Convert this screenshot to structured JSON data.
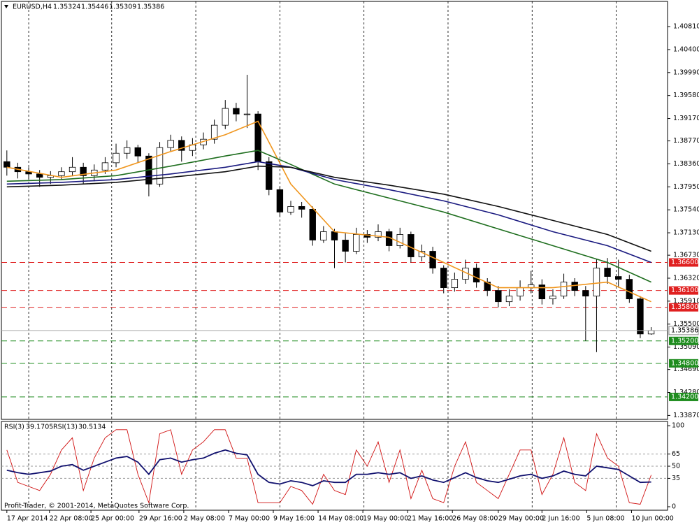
{
  "chart_data": {
    "type": "candlestick",
    "symbol": "EURUSD,H4",
    "header_values": {
      "open": 1.35324,
      "high": 1.35446,
      "low": 1.35309,
      "close": 1.35386
    },
    "ylim": [
      1.338,
      1.4126
    ],
    "yticks": [
      {
        "value": 1.4081,
        "label": "1.40810"
      },
      {
        "value": 1.404,
        "label": "1.40400"
      },
      {
        "value": 1.3999,
        "label": "1.39990"
      },
      {
        "value": 1.3958,
        "label": "1.39580"
      },
      {
        "value": 1.3917,
        "label": "1.39170"
      },
      {
        "value": 1.3877,
        "label": "1.38770"
      },
      {
        "value": 1.3836,
        "label": "1.38360"
      },
      {
        "value": 1.3795,
        "label": "1.37950"
      },
      {
        "value": 1.3754,
        "label": "1.37540"
      },
      {
        "value": 1.3713,
        "label": "1.37130"
      },
      {
        "value": 1.3673,
        "label": "1.36730"
      },
      {
        "value": 1.3632,
        "label": "1.36320"
      },
      {
        "value": 1.3591,
        "label": "1.35910"
      },
      {
        "value": 1.355,
        "label": "1.35500"
      },
      {
        "value": 1.3509,
        "label": "1.35090"
      },
      {
        "value": 1.3469,
        "label": "1.34690"
      },
      {
        "value": 1.3428,
        "label": "1.34280"
      },
      {
        "value": 1.3387,
        "label": "1.33870"
      }
    ],
    "xlim": [
      -0.5,
      60.5
    ],
    "xticks": [
      {
        "value": 0,
        "label": "17 Apr 2014"
      },
      {
        "value": 3.9,
        "label": "22 Apr 08:00"
      },
      {
        "value": 7.7,
        "label": "25 Apr 00:00"
      },
      {
        "value": 12.1,
        "label": "29 Apr 16:00"
      },
      {
        "value": 16.2,
        "label": "2 May 08:00"
      },
      {
        "value": 20.3,
        "label": "7 May 00:00"
      },
      {
        "value": 24.4,
        "label": "9 May 16:00"
      },
      {
        "value": 28.5,
        "label": "14 May 08:00"
      },
      {
        "value": 32.6,
        "label": "19 May 00:00"
      },
      {
        "value": 36.7,
        "label": "21 May 16:00"
      },
      {
        "value": 40.8,
        "label": "26 May 08:00"
      },
      {
        "value": 45.0,
        "label": "29 May 00:00"
      },
      {
        "value": 49.0,
        "label": "2 Jun 16:00"
      },
      {
        "value": 53.1,
        "label": "5 Jun 08:00"
      },
      {
        "value": 57.2,
        "label": "10 Jun 00:00"
      }
    ],
    "xgrid": [
      2.0,
      9.6,
      17.3,
      25.0,
      32.7,
      40.4,
      48.1,
      55.8
    ],
    "open": [
      1.384,
      1.383,
      1.3822,
      1.3818,
      1.3812,
      1.3815,
      1.3822,
      1.383,
      1.3815,
      1.3825,
      1.3838,
      1.3855,
      1.3865,
      1.385,
      1.38,
      1.3865,
      1.3878,
      1.386,
      1.387,
      1.388,
      1.3905,
      1.3935,
      1.3925,
      1.3925,
      1.384,
      1.379,
      1.375,
      1.376,
      1.3755,
      1.37,
      1.3715,
      1.37,
      1.368,
      1.371,
      1.3705,
      1.3715,
      1.369,
      1.371,
      1.367,
      1.368,
      1.365,
      1.3615,
      1.363,
      1.365,
      1.3625,
      1.361,
      1.359,
      1.36,
      1.3615,
      1.362,
      1.3595,
      1.36,
      1.3625,
      1.361,
      1.36,
      1.365,
      1.3635,
      1.363,
      1.3595,
      1.35324
    ],
    "high": [
      1.386,
      1.3838,
      1.383,
      1.3825,
      1.3823,
      1.383,
      1.3848,
      1.3838,
      1.3835,
      1.3848,
      1.3872,
      1.3878,
      1.387,
      1.3855,
      1.3875,
      1.3888,
      1.3885,
      1.3882,
      1.3892,
      1.3915,
      1.395,
      1.3945,
      1.3995,
      1.393,
      1.3848,
      1.3795,
      1.377,
      1.3768,
      1.376,
      1.3725,
      1.372,
      1.3712,
      1.3722,
      1.3718,
      1.3728,
      1.372,
      1.3722,
      1.3715,
      1.3692,
      1.3688,
      1.3655,
      1.3642,
      1.3665,
      1.3658,
      1.3632,
      1.3618,
      1.3612,
      1.3628,
      1.3645,
      1.363,
      1.3612,
      1.364,
      1.3632,
      1.3618,
      1.3665,
      1.3668,
      1.3665,
      1.3638,
      1.36,
      1.35446
    ],
    "low": [
      1.3815,
      1.381,
      1.3808,
      1.3795,
      1.38,
      1.3808,
      1.3815,
      1.38,
      1.3805,
      1.3818,
      1.383,
      1.3845,
      1.3838,
      1.3778,
      1.3795,
      1.3858,
      1.384,
      1.385,
      1.3862,
      1.3872,
      1.3898,
      1.3912,
      1.39,
      1.3825,
      1.378,
      1.3742,
      1.3745,
      1.374,
      1.369,
      1.3695,
      1.365,
      1.366,
      1.3675,
      1.3695,
      1.3698,
      1.368,
      1.3685,
      1.366,
      1.3662,
      1.364,
      1.3605,
      1.3608,
      1.3622,
      1.3615,
      1.36,
      1.358,
      1.3582,
      1.3592,
      1.3605,
      1.3585,
      1.3585,
      1.3595,
      1.36,
      1.352,
      1.35,
      1.3622,
      1.3615,
      1.3588,
      1.3525,
      1.35309
    ],
    "close": [
      1.383,
      1.3822,
      1.3818,
      1.3812,
      1.3815,
      1.3822,
      1.383,
      1.3815,
      1.3825,
      1.3838,
      1.3855,
      1.3865,
      1.385,
      1.38,
      1.3865,
      1.3878,
      1.386,
      1.387,
      1.388,
      1.3905,
      1.3935,
      1.3925,
      1.3925,
      1.384,
      1.379,
      1.375,
      1.376,
      1.3755,
      1.37,
      1.3715,
      1.37,
      1.368,
      1.371,
      1.3705,
      1.3715,
      1.369,
      1.371,
      1.367,
      1.368,
      1.365,
      1.3615,
      1.363,
      1.365,
      1.3625,
      1.361,
      1.359,
      1.36,
      1.3615,
      1.362,
      1.3595,
      1.36,
      1.3625,
      1.361,
      1.36,
      1.365,
      1.3635,
      1.363,
      1.3595,
      1.35324,
      1.35386
    ],
    "ma_x": [
      0,
      5,
      10,
      15,
      20,
      23,
      26,
      30,
      35,
      40,
      45,
      50,
      55,
      59
    ],
    "moving_averages": [
      {
        "color": "#f0961e",
        "values": [
          1.383,
          1.3812,
          1.3825,
          1.3858,
          1.3888,
          1.3912,
          1.38,
          1.3715,
          1.3705,
          1.366,
          1.3615,
          1.3615,
          1.3625,
          1.359
        ]
      },
      {
        "color": "#1e6e1e",
        "values": [
          1.3805,
          1.3808,
          1.3815,
          1.3832,
          1.385,
          1.386,
          1.3835,
          1.38,
          1.3775,
          1.375,
          1.372,
          1.369,
          1.366,
          1.3625
        ]
      },
      {
        "color": "#1a1a80",
        "values": [
          1.38,
          1.3803,
          1.3808,
          1.3818,
          1.383,
          1.384,
          1.383,
          1.3808,
          1.379,
          1.377,
          1.3745,
          1.3715,
          1.369,
          1.366
        ]
      },
      {
        "color": "#111111",
        "values": [
          1.3795,
          1.3798,
          1.3803,
          1.3812,
          1.3822,
          1.3832,
          1.383,
          1.3812,
          1.3798,
          1.3782,
          1.376,
          1.3735,
          1.371,
          1.368
        ]
      }
    ],
    "levels": [
      {
        "value": 1.366,
        "label": "1.36600",
        "color": "#e02020"
      },
      {
        "value": 1.361,
        "label": "1.36100",
        "color": "#e02020"
      },
      {
        "value": 1.358,
        "label": "1.35800",
        "color": "#e02020"
      },
      {
        "value": 1.352,
        "label": "1.35200",
        "color": "#1e8c1e"
      },
      {
        "value": 1.348,
        "label": "1.34800",
        "color": "#1e8c1e"
      },
      {
        "value": 1.342,
        "label": "1.34200",
        "color": "#1e8c1e"
      }
    ],
    "rsi": {
      "ylim": [
        -4.3,
        105.2
      ],
      "yticks": [
        100,
        65,
        50,
        35,
        0
      ],
      "levels": [
        65,
        50,
        35
      ],
      "series": [
        {
          "name": "RSI(3)",
          "color": "#d01010",
          "values": [
            70,
            30,
            25,
            20,
            40,
            70,
            85,
            20,
            60,
            85,
            95,
            95,
            40,
            5,
            90,
            95,
            40,
            70,
            80,
            95,
            95,
            60,
            60,
            5,
            5,
            5,
            25,
            20,
            3,
            40,
            20,
            15,
            70,
            50,
            80,
            30,
            70,
            10,
            45,
            10,
            5,
            50,
            80,
            30,
            20,
            10,
            40,
            70,
            70,
            15,
            40,
            85,
            30,
            20,
            90,
            60,
            50,
            5,
            3,
            39.1705
          ]
        },
        {
          "name": "RSI(13)",
          "color": "#10106e",
          "values": [
            45,
            42,
            40,
            42,
            44,
            50,
            52,
            45,
            50,
            55,
            60,
            62,
            55,
            40,
            58,
            60,
            55,
            58,
            60,
            66,
            70,
            66,
            64,
            40,
            30,
            28,
            32,
            30,
            26,
            32,
            30,
            30,
            40,
            40,
            42,
            40,
            42,
            35,
            38,
            33,
            30,
            36,
            42,
            36,
            32,
            30,
            34,
            38,
            40,
            35,
            38,
            44,
            40,
            38,
            50,
            48,
            46,
            38,
            30,
            30.5134
          ]
        }
      ]
    },
    "copyright": "Profit-Trader, © 2001-2014, MetaQuotes Software Corp."
  }
}
